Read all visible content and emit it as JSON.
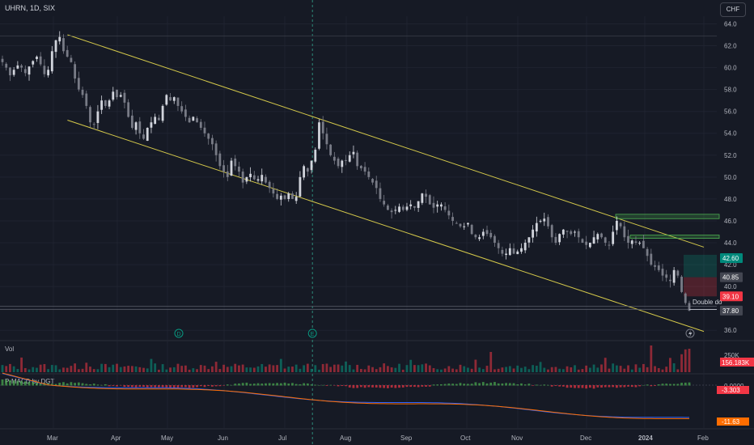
{
  "header": {
    "symbol_line": "UHRN, 1D, SIX",
    "currency_button": "CHF"
  },
  "panes": {
    "volume_label": "Vol",
    "macd_label": "P-MACD by DGT"
  },
  "chart_data": {
    "type": "candlestick",
    "symbol": "UHRN",
    "interval": "1D",
    "exchange": "SIX",
    "currency": "CHF",
    "price_axis": {
      "ticks": [
        "64.0",
        "62.0",
        "60.0",
        "58.0",
        "56.0",
        "54.0",
        "52.0",
        "50.0",
        "48.0",
        "46.0",
        "44.0",
        "42.0",
        "40.0",
        "38.0",
        "36.0"
      ],
      "range": [
        35.5,
        64.7
      ]
    },
    "time_axis": {
      "labels": [
        "Mar",
        "Apr",
        "May",
        "Jun",
        "Jul",
        "Aug",
        "Sep",
        "Oct",
        "Nov",
        "Dec",
        "2024",
        "Feb"
      ]
    },
    "price_labels": [
      {
        "text": "42.60",
        "color": "#00897b",
        "value": 42.6
      },
      {
        "text": "40.85",
        "color": "#434651",
        "value": 40.85
      },
      {
        "text": "39.10",
        "color": "#f23645",
        "value": 39.1
      },
      {
        "text": "37.80",
        "color": "#434651",
        "value": 37.8
      }
    ],
    "annotation": "Double do",
    "event_markers": [
      {
        "letter": "D",
        "month_position": 2.2
      },
      {
        "letter": "E",
        "month_position": 4.45
      }
    ],
    "channel_lines": [
      {
        "from": {
          "x": 0.22,
          "y": 63.0
        },
        "to": {
          "x": 11.15,
          "y": 43.6
        }
      },
      {
        "from": {
          "x": 0.22,
          "y": 55.2
        },
        "to": {
          "x": 11.15,
          "y": 35.9
        }
      }
    ],
    "series_close": [
      60.5,
      60.0,
      59.3,
      59.8,
      60.2,
      60.0,
      59.5,
      60.1,
      60.6,
      61.0,
      60.3,
      59.4,
      59.8,
      61.5,
      62.5,
      62.8,
      61.5,
      61.0,
      60.5,
      59.0,
      58.0,
      57.5,
      56.5,
      55.0,
      54.8,
      56.0,
      57.0,
      56.5,
      57.0,
      57.8,
      57.3,
      57.5,
      56.8,
      55.5,
      54.5,
      55.0,
      54.0,
      53.5,
      54.5,
      55.0,
      55.5,
      55.2,
      56.5,
      57.5,
      57.0,
      57.3,
      56.5,
      56.0,
      55.5,
      55.0,
      55.5,
      55.0,
      54.5,
      54.0,
      53.5,
      53.0,
      52.0,
      51.0,
      50.5,
      50.0,
      51.5,
      51.0,
      50.5,
      49.5,
      50.0,
      50.3,
      49.8,
      49.8,
      50.2,
      49.5,
      49.0,
      48.5,
      48.0,
      48.3,
      48.0,
      48.5,
      48.0,
      48.2,
      50.0,
      51.0,
      50.5,
      51.5,
      52.5,
      55.0,
      54.0,
      53.0,
      52.0,
      51.5,
      51.0,
      51.5,
      51.5,
      52.0,
      52.3,
      51.0,
      50.8,
      50.5,
      50.0,
      49.5,
      49.0,
      48.0,
      47.5,
      47.0,
      46.8,
      47.0,
      47.3,
      47.0,
      47.3,
      47.5,
      47.2,
      47.8,
      48.5,
      48.2,
      47.5,
      47.2,
      47.5,
      47.5,
      47.0,
      46.5,
      46.0,
      45.8,
      45.5,
      45.5,
      45.8,
      44.8,
      44.5,
      44.5,
      45.0,
      44.8,
      44.5,
      44.0,
      43.5,
      43.0,
      43.0,
      43.5,
      43.0,
      43.2,
      43.5,
      44.0,
      44.5,
      45.2,
      45.8,
      46.0,
      46.2,
      45.5,
      44.5,
      44.0,
      44.8,
      45.2,
      45.0,
      44.8,
      45.0,
      44.5,
      44.0,
      43.8,
      44.0,
      44.5,
      44.8,
      44.5,
      44.0,
      43.8,
      45.0,
      46.0,
      45.5,
      44.5,
      44.0,
      44.2,
      44.0,
      44.0,
      43.5,
      42.8,
      42.0,
      41.8,
      41.5,
      41.0,
      40.8,
      40.5,
      41.5,
      41.0,
      39.5,
      38.5,
      37.8
    ]
  }
}
